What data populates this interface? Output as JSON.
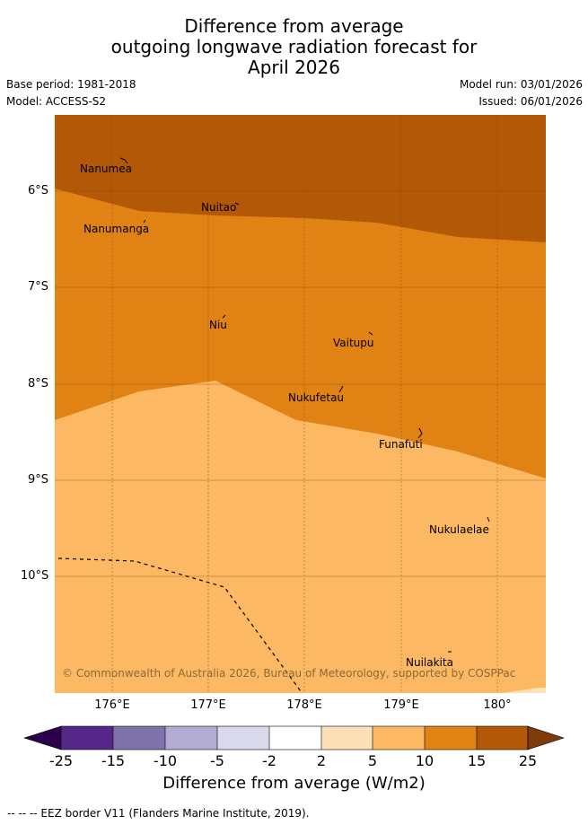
{
  "title": {
    "line1": "Difference from average",
    "line2": "outgoing longwave radiation forecast for",
    "line3": "April 2026"
  },
  "meta": {
    "base_period": "Base period: 1981-2018",
    "model": "Model: ACCESS-S2",
    "model_run": "Model run: 03/01/2026",
    "issued": "Issued: 06/01/2026"
  },
  "map": {
    "lat_labels": [
      "6°S",
      "7°S",
      "8°S",
      "9°S",
      "10°S"
    ],
    "lon_labels": [
      "176°E",
      "177°E",
      "178°E",
      "179°E",
      "180°"
    ],
    "islands": [
      "Nanumea",
      "Nuitao",
      "Nanumanga",
      "Niu",
      "Vaitupu",
      "Nukufetau",
      "Funafuti",
      "Nukulaelae",
      "Nuilakita"
    ],
    "copyright": "© Commonwealth of Australia 2026, Bureau of Meteorology, supported by COSPPac",
    "band_colors": {
      "band_15_25": "#b35806",
      "band_10_15": "#e08214",
      "band_5_10": "#fdb863",
      "band_2_5": "#fee0b6"
    }
  },
  "colorbar": {
    "ticks": [
      "-25",
      "-15",
      "-10",
      "-5",
      "-2",
      "2",
      "5",
      "10",
      "15",
      "25"
    ],
    "colors": [
      "#2d004b",
      "#542788",
      "#8073ac",
      "#b2abd2",
      "#d8daeb",
      "#ffffff",
      "#fee0b6",
      "#fdb863",
      "#e08214",
      "#b35806",
      "#7f3b08"
    ],
    "title": "Difference from average (W/m2)"
  },
  "footer": "--  --  -- EEZ border V11 (Flanders Marine Institute, 2019)."
}
